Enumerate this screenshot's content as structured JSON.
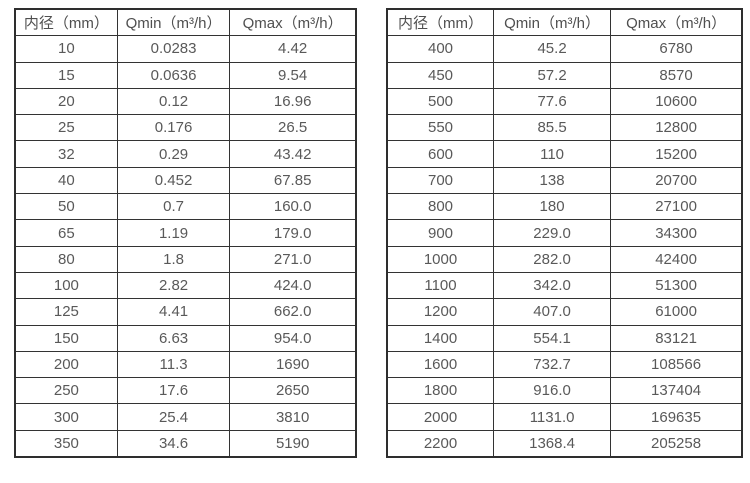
{
  "page": {
    "background_color": "#ffffff",
    "border_color": "#2e2e2e",
    "text_color": "#595959"
  },
  "tables": [
    {
      "name": "flow-range-table-small-diameters",
      "headers": [
        "内径（mm）",
        "Qmin（m³/h）",
        "Qmax（m³/h）"
      ],
      "rows": [
        [
          "10",
          "0.0283",
          "4.42"
        ],
        [
          "15",
          "0.0636",
          "9.54"
        ],
        [
          "20",
          "0.12",
          "16.96"
        ],
        [
          "25",
          "0.176",
          "26.5"
        ],
        [
          "32",
          "0.29",
          "43.42"
        ],
        [
          "40",
          "0.452",
          "67.85"
        ],
        [
          "50",
          "0.7",
          "160.0"
        ],
        [
          "65",
          "1.19",
          "179.0"
        ],
        [
          "80",
          "1.8",
          "271.0"
        ],
        [
          "100",
          "2.82",
          "424.0"
        ],
        [
          "125",
          "4.41",
          "662.0"
        ],
        [
          "150",
          "6.63",
          "954.0"
        ],
        [
          "200",
          "11.3",
          "1690"
        ],
        [
          "250",
          "17.6",
          "2650"
        ],
        [
          "300",
          "25.4",
          "3810"
        ],
        [
          "350",
          "34.6",
          "5190"
        ]
      ]
    },
    {
      "name": "flow-range-table-large-diameters",
      "headers": [
        "内径（mm）",
        "Qmin（m³/h）",
        "Qmax（m³/h）"
      ],
      "rows": [
        [
          "400",
          "45.2",
          "6780"
        ],
        [
          "450",
          "57.2",
          "8570"
        ],
        [
          "500",
          "77.6",
          "10600"
        ],
        [
          "550",
          "85.5",
          "12800"
        ],
        [
          "600",
          "110",
          "15200"
        ],
        [
          "700",
          "138",
          "20700"
        ],
        [
          "800",
          "180",
          "27100"
        ],
        [
          "900",
          "229.0",
          "34300"
        ],
        [
          "1000",
          "282.0",
          "42400"
        ],
        [
          "1100",
          "342.0",
          "51300"
        ],
        [
          "1200",
          "407.0",
          "61000"
        ],
        [
          "1400",
          "554.1",
          "83121"
        ],
        [
          "1600",
          "732.7",
          "108566"
        ],
        [
          "1800",
          "916.0",
          "137404"
        ],
        [
          "2000",
          "1131.0",
          "169635"
        ],
        [
          "2200",
          "1368.4",
          "205258"
        ]
      ]
    }
  ]
}
